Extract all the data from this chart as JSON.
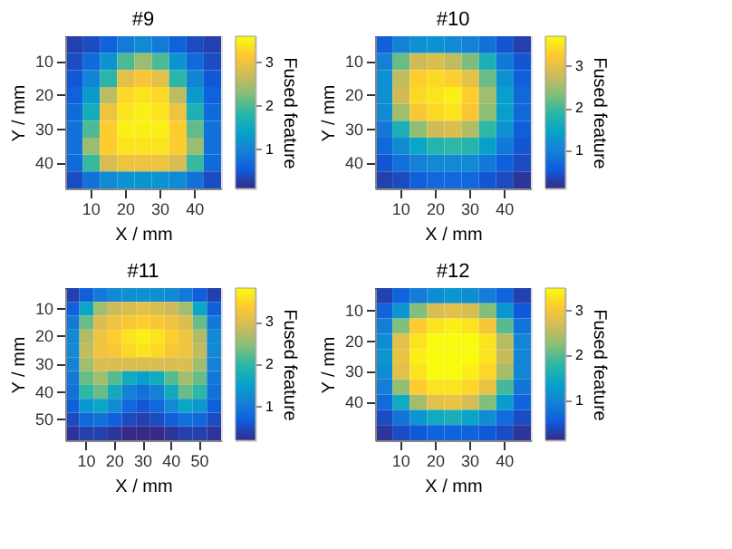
{
  "chart_data": [
    {
      "type": "heatmap",
      "title": "#9",
      "xlabel": "X / mm",
      "ylabel": "Y / mm",
      "clabel": "Fused feature",
      "categories": [
        null,
        "10",
        null,
        "20",
        null,
        "30",
        null,
        "40",
        null
      ],
      "y_categories": [
        null,
        "10",
        null,
        "20",
        null,
        "30",
        null,
        "40",
        null
      ],
      "cells": [
        [
          0.3,
          0.4,
          0.6,
          0.9,
          1.1,
          0.9,
          0.6,
          0.4,
          0.3
        ],
        [
          0.4,
          0.7,
          1.2,
          2.0,
          2.4,
          2.0,
          1.2,
          0.7,
          0.4
        ],
        [
          0.5,
          1.0,
          1.8,
          2.9,
          3.1,
          2.9,
          1.8,
          1.0,
          0.5
        ],
        [
          0.6,
          1.3,
          2.6,
          3.3,
          3.4,
          3.3,
          2.6,
          1.3,
          0.6
        ],
        [
          0.7,
          1.6,
          3.0,
          3.4,
          3.5,
          3.4,
          3.0,
          1.7,
          0.7
        ],
        [
          0.8,
          2.0,
          3.2,
          3.5,
          3.5,
          3.5,
          3.2,
          2.1,
          0.8
        ],
        [
          0.8,
          2.4,
          3.2,
          3.4,
          3.4,
          3.4,
          3.2,
          2.4,
          0.8
        ],
        [
          0.7,
          1.9,
          2.8,
          3.0,
          3.0,
          3.0,
          2.8,
          1.9,
          0.7
        ],
        [
          0.4,
          0.8,
          1.1,
          1.2,
          1.2,
          1.2,
          1.1,
          0.8,
          0.4
        ]
      ],
      "clim": [
        0.1,
        3.6
      ],
      "cticks": [
        1,
        2,
        3
      ]
    },
    {
      "type": "heatmap",
      "title": "#10",
      "xlabel": "X / mm",
      "ylabel": "Y / mm",
      "clabel": "Fused feature",
      "categories": [
        null,
        "10",
        null,
        "20",
        null,
        "30",
        null,
        "40",
        null
      ],
      "y_categories": [
        null,
        "10",
        null,
        "20",
        null,
        "30",
        null,
        "40",
        null
      ],
      "cells": [
        [
          0.6,
          1.0,
          1.2,
          1.2,
          1.1,
          1.0,
          0.8,
          0.5,
          0.3
        ],
        [
          1.0,
          2.2,
          2.8,
          2.9,
          2.7,
          2.3,
          1.7,
          0.9,
          0.5
        ],
        [
          1.2,
          2.7,
          3.3,
          3.4,
          3.3,
          3.0,
          2.2,
          1.2,
          0.6
        ],
        [
          1.2,
          2.8,
          3.4,
          3.5,
          3.6,
          3.3,
          2.5,
          1.4,
          0.7
        ],
        [
          1.1,
          2.5,
          3.2,
          3.4,
          3.5,
          3.2,
          2.4,
          1.4,
          0.7
        ],
        [
          0.9,
          1.7,
          2.4,
          2.8,
          2.9,
          2.6,
          1.9,
          1.2,
          0.6
        ],
        [
          0.7,
          1.1,
          1.5,
          1.8,
          1.9,
          1.8,
          1.4,
          0.9,
          0.5
        ],
        [
          0.5,
          0.8,
          1.0,
          1.1,
          1.1,
          1.1,
          0.9,
          0.6,
          0.4
        ],
        [
          0.3,
          0.4,
          0.6,
          0.7,
          0.7,
          0.7,
          0.5,
          0.4,
          0.2
        ]
      ],
      "clim": [
        0.1,
        3.7
      ],
      "cticks": [
        1,
        2,
        3
      ]
    },
    {
      "type": "heatmap",
      "title": "#11",
      "xlabel": "X / mm",
      "ylabel": "Y / mm",
      "clabel": "Fused feature",
      "categories": [
        null,
        "10",
        null,
        "20",
        null,
        "30",
        null,
        "40",
        null,
        "50",
        null
      ],
      "y_categories": [
        null,
        "10",
        null,
        "20",
        null,
        "30",
        null,
        "40",
        null,
        "50",
        null
      ],
      "cells": [
        [
          0.4,
          0.7,
          1.0,
          1.2,
          1.3,
          1.3,
          1.3,
          1.2,
          1.0,
          0.7,
          0.4
        ],
        [
          0.7,
          1.6,
          2.6,
          2.9,
          3.0,
          3.1,
          3.0,
          2.9,
          2.6,
          1.6,
          0.7
        ],
        [
          1.0,
          2.3,
          3.0,
          3.2,
          3.3,
          3.4,
          3.3,
          3.2,
          3.0,
          2.3,
          1.0
        ],
        [
          1.2,
          2.7,
          3.2,
          3.4,
          3.6,
          3.7,
          3.6,
          3.4,
          3.2,
          2.7,
          1.2
        ],
        [
          1.2,
          2.8,
          3.2,
          3.3,
          3.5,
          3.6,
          3.5,
          3.3,
          3.2,
          2.8,
          1.2
        ],
        [
          1.1,
          2.6,
          3.0,
          3.0,
          3.0,
          3.0,
          3.0,
          3.0,
          3.0,
          2.6,
          1.1
        ],
        [
          1.0,
          2.3,
          2.6,
          2.2,
          1.7,
          1.5,
          1.7,
          2.2,
          2.6,
          2.3,
          1.0
        ],
        [
          0.9,
          2.0,
          2.3,
          1.7,
          1.1,
          0.9,
          1.1,
          1.7,
          2.3,
          2.0,
          0.9
        ],
        [
          0.7,
          1.4,
          1.6,
          1.2,
          0.8,
          0.6,
          0.8,
          1.2,
          1.6,
          1.4,
          0.7
        ],
        [
          0.5,
          0.8,
          0.9,
          0.7,
          0.5,
          0.4,
          0.5,
          0.7,
          0.9,
          0.8,
          0.5
        ],
        [
          0.3,
          0.4,
          0.4,
          0.3,
          0.2,
          0.2,
          0.2,
          0.3,
          0.4,
          0.4,
          0.3
        ]
      ],
      "clim": [
        0.2,
        3.8
      ],
      "cticks": [
        1,
        2,
        3
      ]
    },
    {
      "type": "heatmap",
      "title": "#12",
      "xlabel": "X / mm",
      "ylabel": "Y / mm",
      "clabel": "Fused feature",
      "categories": [
        null,
        "10",
        null,
        "20",
        null,
        "30",
        null,
        "40",
        null
      ],
      "y_categories": [
        null,
        "10",
        null,
        "20",
        null,
        "30",
        null,
        "40",
        null,
        null
      ],
      "cells": [
        [
          0.3,
          0.6,
          0.9,
          1.1,
          1.2,
          1.1,
          0.9,
          0.6,
          0.3
        ],
        [
          0.6,
          1.2,
          2.2,
          2.7,
          2.8,
          2.7,
          2.2,
          1.2,
          0.5
        ],
        [
          0.9,
          2.2,
          3.1,
          3.3,
          3.4,
          3.3,
          3.0,
          2.0,
          0.8
        ],
        [
          1.1,
          2.8,
          3.3,
          3.5,
          3.5,
          3.5,
          3.3,
          2.5,
          1.0
        ],
        [
          1.2,
          2.9,
          3.4,
          3.5,
          3.5,
          3.5,
          3.3,
          2.6,
          1.0
        ],
        [
          1.1,
          2.8,
          3.3,
          3.5,
          3.5,
          3.4,
          3.2,
          2.4,
          1.0
        ],
        [
          0.9,
          2.3,
          3.1,
          3.3,
          3.3,
          3.2,
          2.9,
          1.9,
          0.8
        ],
        [
          0.7,
          1.5,
          2.4,
          2.8,
          2.9,
          2.7,
          2.2,
          1.3,
          0.6
        ],
        [
          0.4,
          0.8,
          1.2,
          1.5,
          1.6,
          1.4,
          1.1,
          0.7,
          0.4
        ],
        [
          0.2,
          0.4,
          0.5,
          0.6,
          0.6,
          0.6,
          0.5,
          0.4,
          0.2
        ]
      ],
      "clim": [
        0.1,
        3.5
      ],
      "cticks": [
        1,
        2,
        3
      ]
    }
  ]
}
